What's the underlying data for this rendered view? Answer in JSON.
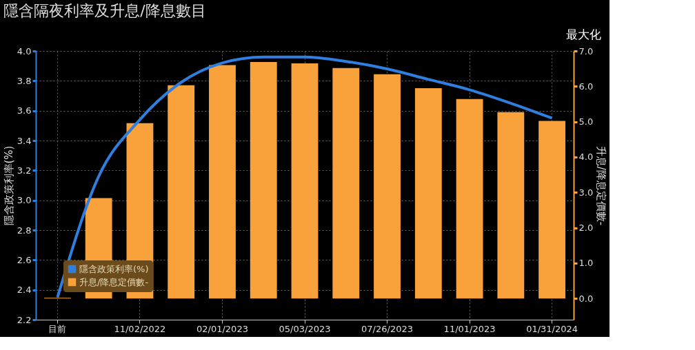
{
  "chart_data": {
    "type": "bar",
    "title": "隱含隔夜利率及升息/降息數目",
    "ylabel": "隱含政策利率(%)",
    "y2label": "升息/降息定價數-",
    "categories": [
      "目前",
      null,
      "11/02/2022",
      null,
      "02/01/2023",
      null,
      "05/03/2023",
      null,
      "07/26/2023",
      null,
      "11/01/2023",
      null,
      "01/31/2024"
    ],
    "series": [
      {
        "name": "隱含政策利率(%)",
        "type": "line",
        "color": "#2f7fe0",
        "values": [
          2.35,
          3.16,
          3.54,
          3.79,
          3.92,
          3.96,
          3.96,
          3.93,
          3.88,
          3.81,
          3.74,
          3.65,
          3.55
        ]
      },
      {
        "name": "升息/降息定價數-",
        "axis": "y2",
        "color": "#f9a23c",
        "values": [
          0.02,
          2.84,
          4.96,
          6.03,
          6.6,
          6.69,
          6.65,
          6.52,
          6.34,
          5.95,
          5.64,
          5.27,
          5.02
        ]
      }
    ],
    "ylim": [
      2.2,
      4.0
    ],
    "yticks": [
      2.2,
      2.4,
      2.6,
      2.8,
      {
        "value": 3,
        "label": "3.0"
      },
      3.2,
      3.4,
      3.6,
      3.8,
      {
        "value": 4,
        "label": "4.0"
      }
    ],
    "y2lim": [
      -0.6,
      7.0
    ],
    "y2ticks": [
      {
        "value": 0,
        "label": "0.0"
      },
      {
        "value": 1,
        "label": "1.0"
      },
      {
        "value": 2,
        "label": "2.0"
      },
      {
        "value": 3,
        "label": "3.0"
      },
      {
        "value": 4,
        "label": "4.0"
      },
      {
        "value": 5,
        "label": "5.0"
      },
      {
        "value": 6,
        "label": "6.0"
      },
      {
        "value": 7,
        "label": "7.0"
      }
    ],
    "grid": true,
    "legend": "bottom left",
    "annotations": [
      "最大化"
    ]
  }
}
